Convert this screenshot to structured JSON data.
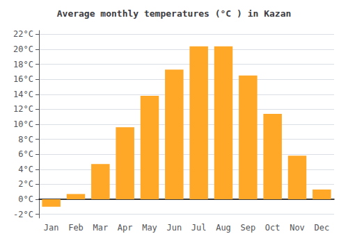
{
  "chart_data": {
    "type": "bar",
    "title": "Average monthly temperatures (°C ) in Kazan",
    "categories": [
      "Jan",
      "Feb",
      "Mar",
      "Apr",
      "May",
      "Jun",
      "Jul",
      "Aug",
      "Sep",
      "Oct",
      "Nov",
      "Dec"
    ],
    "values": [
      -1.0,
      0.7,
      4.7,
      9.6,
      13.8,
      17.3,
      20.4,
      20.4,
      16.5,
      11.4,
      5.8,
      1.3
    ],
    "color": "#FFA726",
    "ylim": [
      -2.5,
      22.5
    ],
    "yticks": [
      {
        "value": -2,
        "label": "-2°C"
      },
      {
        "value": 0,
        "label": "0°C"
      },
      {
        "value": 2,
        "label": "2°C"
      },
      {
        "value": 4,
        "label": "4°C"
      },
      {
        "value": 6,
        "label": "6°C"
      },
      {
        "value": 8,
        "label": "8°C"
      },
      {
        "value": 10,
        "label": "10°C"
      },
      {
        "value": 12,
        "label": "12°C"
      },
      {
        "value": 14,
        "label": "14°C"
      },
      {
        "value": 16,
        "label": "16°C"
      },
      {
        "value": 18,
        "label": "18°C"
      },
      {
        "value": 20,
        "label": "20°C"
      },
      {
        "value": 22,
        "label": "22°C"
      }
    ],
    "grid": true
  }
}
